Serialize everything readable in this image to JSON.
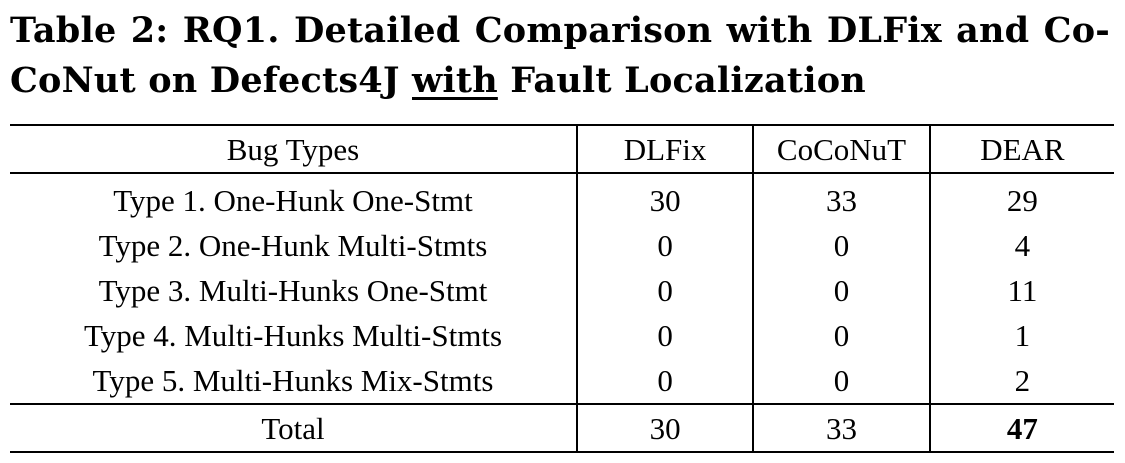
{
  "caption": {
    "line1": "Table 2: RQ1. Detailed Comparison with DLFix and Co-",
    "line2_pre": "CoNut on Defects4J ",
    "line2_underlined": "with",
    "line2_post": " Fault Localization"
  },
  "table": {
    "headers": [
      "Bug Types",
      "DLFix",
      "CoCoNuT",
      "DEAR"
    ],
    "rows": [
      {
        "type": "Type 1. One-Hunk One-Stmt",
        "dlfix": "30",
        "coconut": "33",
        "dear": "29"
      },
      {
        "type": "Type 2. One-Hunk Multi-Stmts",
        "dlfix": "0",
        "coconut": "0",
        "dear": "4"
      },
      {
        "type": "Type 3. Multi-Hunks One-Stmt",
        "dlfix": "0",
        "coconut": "0",
        "dear": "11"
      },
      {
        "type": "Type 4. Multi-Hunks Multi-Stmts",
        "dlfix": "0",
        "coconut": "0",
        "dear": "1"
      },
      {
        "type": "Type 5. Multi-Hunks Mix-Stmts",
        "dlfix": "0",
        "coconut": "0",
        "dear": "2"
      }
    ],
    "total": {
      "label": "Total",
      "dlfix": "30",
      "coconut": "33",
      "dear": "47"
    }
  }
}
